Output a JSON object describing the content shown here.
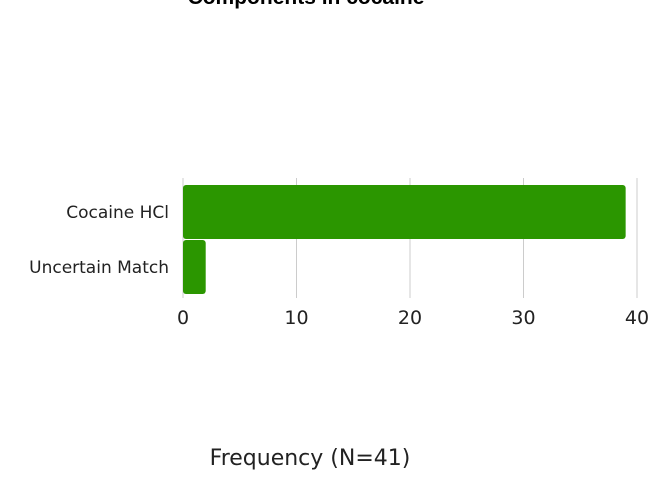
{
  "chart_data": {
    "type": "bar",
    "orientation": "horizontal",
    "title": "Components in cocaine",
    "xlabel": "Frequency (N=41)",
    "ylabel": "",
    "categories": [
      "Cocaine HCl",
      "Uncertain Match"
    ],
    "values": [
      39,
      2
    ],
    "xlim": [
      0,
      40
    ],
    "xticks": [
      0,
      10,
      20,
      30,
      40
    ],
    "grid": true,
    "legend": "none",
    "bar_color": "#2b9600"
  }
}
